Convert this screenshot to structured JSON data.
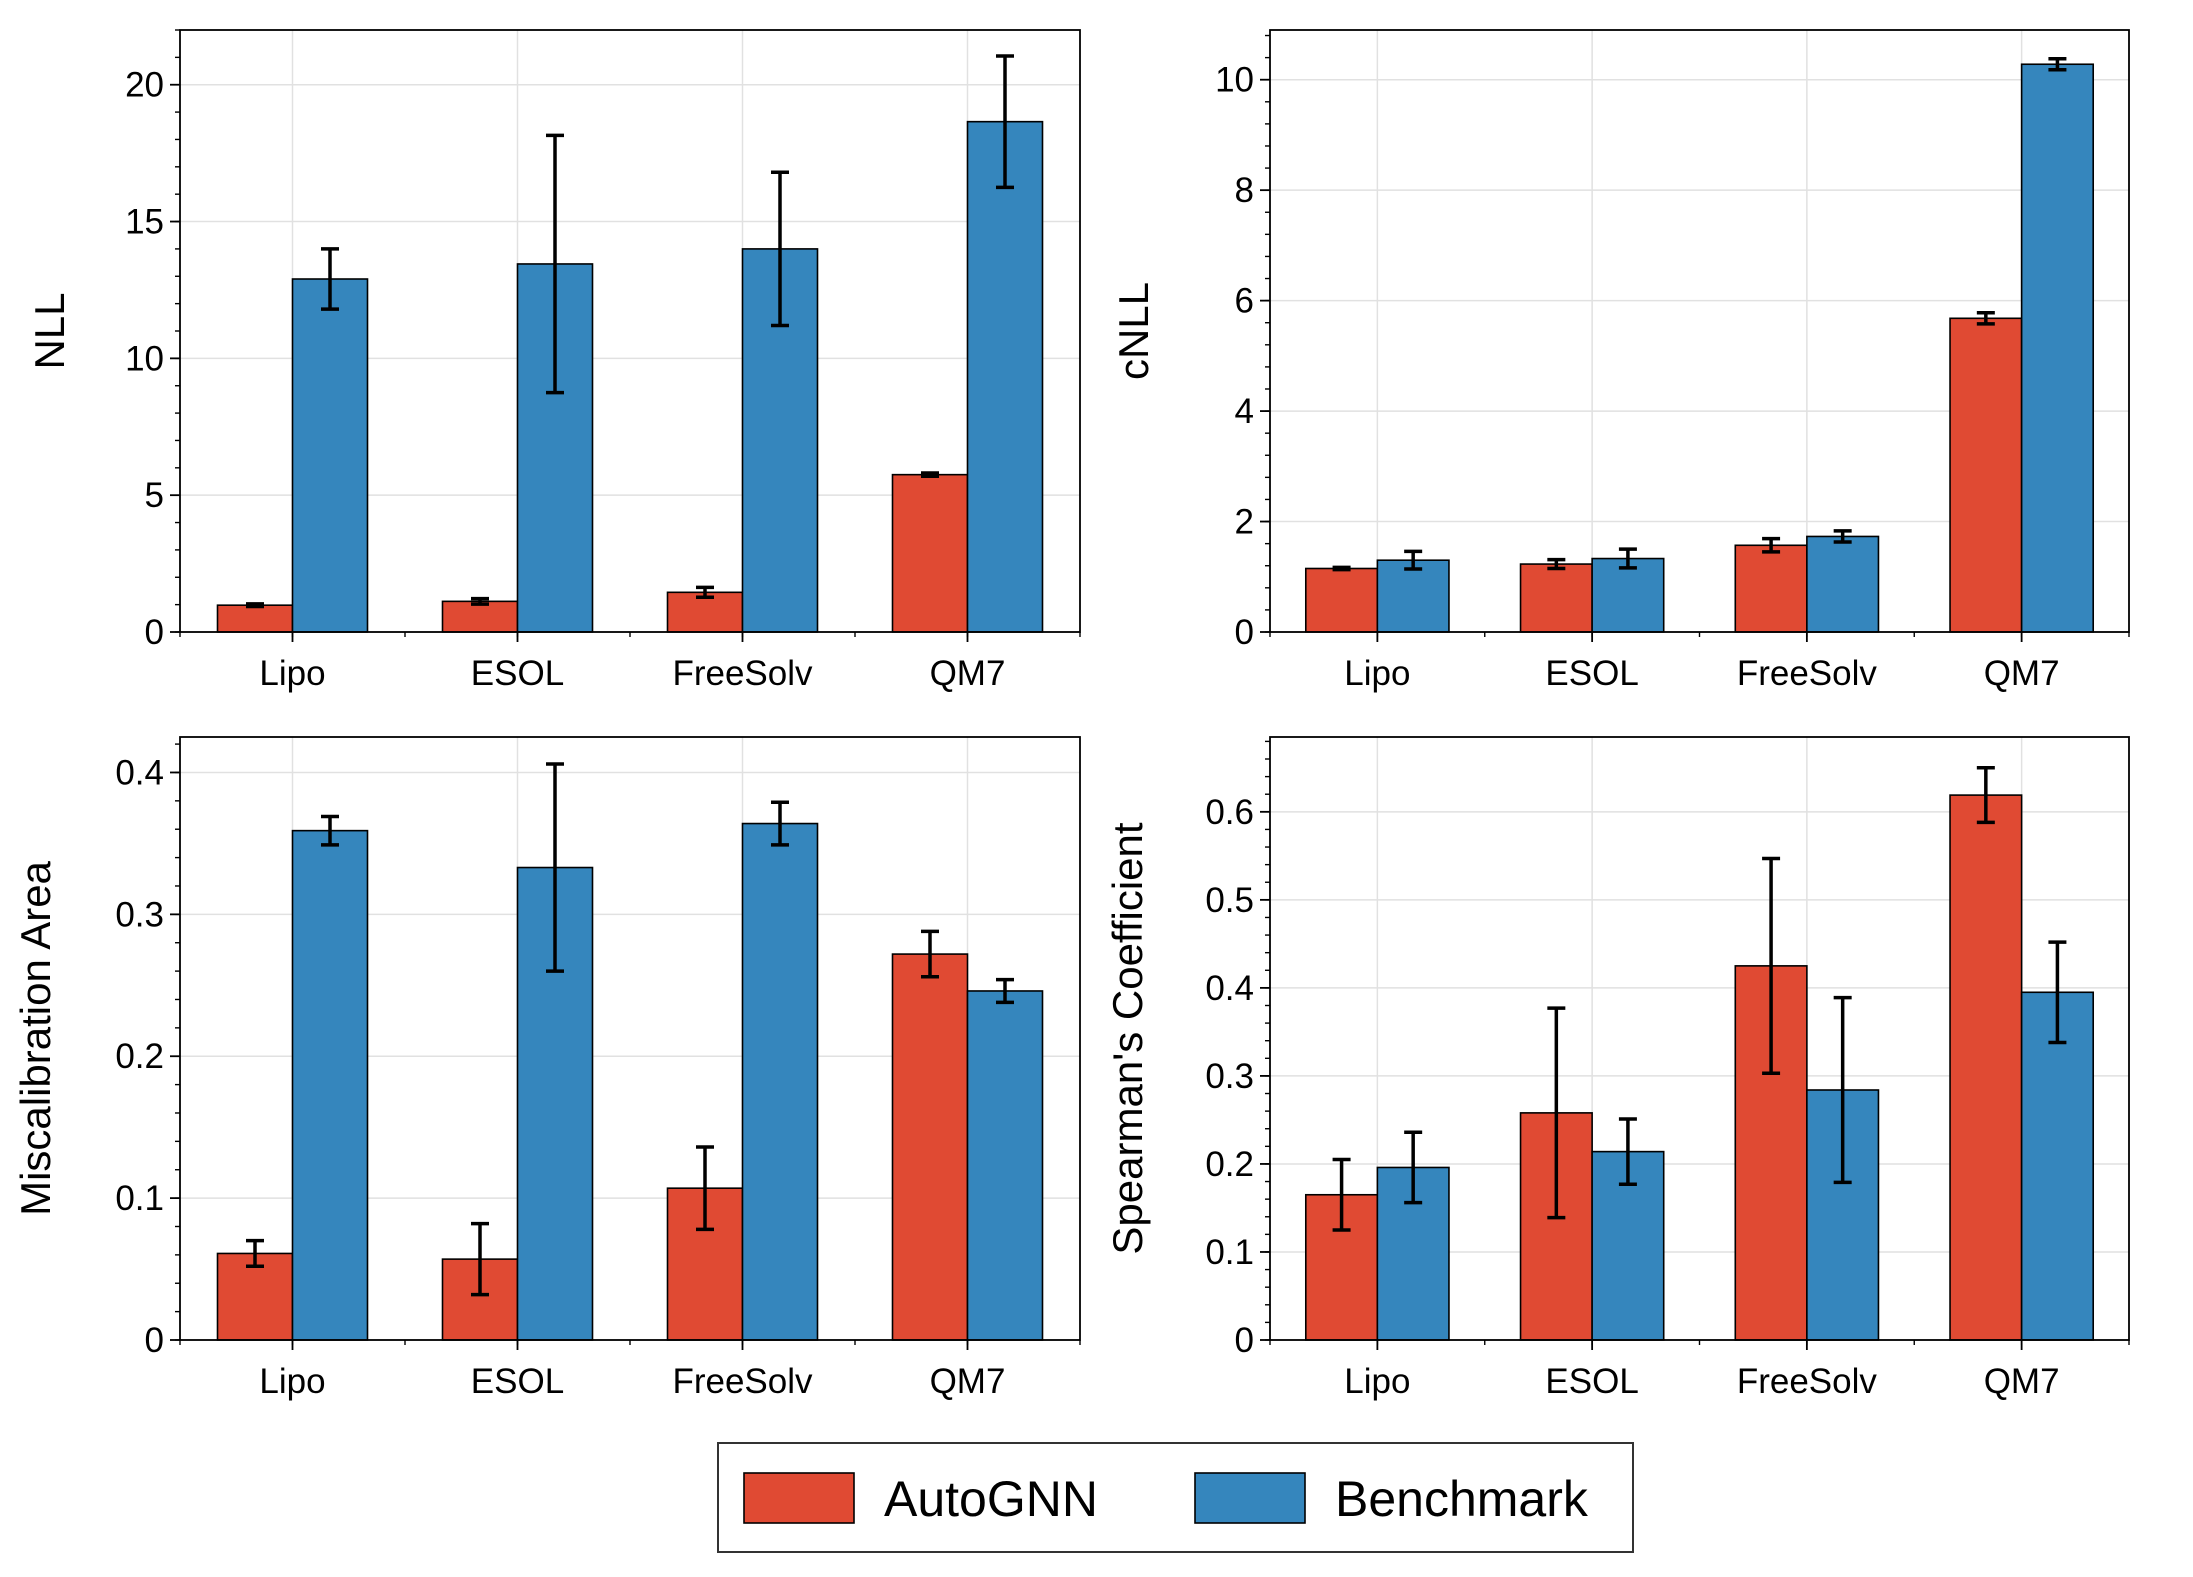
{
  "colors": {
    "AutoGNN": "#e04a33",
    "Benchmark": "#3586bd",
    "grid": "#e1e1e1",
    "error": "#000000"
  },
  "legend": {
    "placement": "bottom-center",
    "items": [
      {
        "label": "AutoGNN",
        "color": "#e04a33"
      },
      {
        "label": "Benchmark",
        "color": "#3586bd"
      }
    ]
  },
  "chart_data": [
    {
      "type": "bar",
      "ylabel": "NLL",
      "categories": [
        "Lipo",
        "ESOL",
        "FreeSolv",
        "QM7"
      ],
      "ylim": [
        0,
        22
      ],
      "yticks": [
        0,
        5,
        10,
        15,
        20
      ],
      "ytick_labels": [
        "0",
        "5",
        "10",
        "15",
        "20"
      ],
      "grid": true,
      "series": [
        {
          "name": "AutoGNN",
          "values": [
            0.98,
            1.12,
            1.45,
            5.75
          ],
          "errors": [
            0.05,
            0.1,
            0.18,
            0.06
          ]
        },
        {
          "name": "Benchmark",
          "values": [
            12.9,
            13.45,
            14.0,
            18.65
          ],
          "errors": [
            1.1,
            4.7,
            2.8,
            2.4
          ]
        }
      ]
    },
    {
      "type": "bar",
      "ylabel": "cNLL",
      "categories": [
        "Lipo",
        "ESOL",
        "FreeSolv",
        "QM7"
      ],
      "ylim": [
        0,
        10.9
      ],
      "yticks": [
        0,
        2,
        4,
        6,
        8,
        10
      ],
      "ytick_labels": [
        "0",
        "2",
        "4",
        "6",
        "8",
        "10"
      ],
      "grid": true,
      "series": [
        {
          "name": "AutoGNN",
          "values": [
            1.15,
            1.23,
            1.57,
            5.68
          ],
          "errors": [
            0.02,
            0.08,
            0.12,
            0.1
          ]
        },
        {
          "name": "Benchmark",
          "values": [
            1.3,
            1.33,
            1.73,
            10.28
          ],
          "errors": [
            0.16,
            0.17,
            0.1,
            0.1
          ]
        }
      ]
    },
    {
      "type": "bar",
      "ylabel": "Miscalibration Area",
      "categories": [
        "Lipo",
        "ESOL",
        "FreeSolv",
        "QM7"
      ],
      "ylim": [
        0,
        0.425
      ],
      "yticks": [
        0,
        0.1,
        0.2,
        0.3,
        0.4
      ],
      "ytick_labels": [
        "0",
        "0.1",
        "0.2",
        "0.3",
        "0.4"
      ],
      "grid": true,
      "series": [
        {
          "name": "AutoGNN",
          "values": [
            0.061,
            0.057,
            0.107,
            0.272
          ],
          "errors": [
            0.009,
            0.025,
            0.029,
            0.016
          ]
        },
        {
          "name": "Benchmark",
          "values": [
            0.359,
            0.333,
            0.364,
            0.246
          ],
          "errors": [
            0.01,
            0.073,
            0.015,
            0.008
          ]
        }
      ]
    },
    {
      "type": "bar",
      "ylabel": "Spearman's Coefficient",
      "categories": [
        "Lipo",
        "ESOL",
        "FreeSolv",
        "QM7"
      ],
      "ylim": [
        0,
        0.685
      ],
      "yticks": [
        0,
        0.1,
        0.2,
        0.3,
        0.4,
        0.5,
        0.6
      ],
      "ytick_labels": [
        "0",
        "0.1",
        "0.2",
        "0.3",
        "0.4",
        "0.5",
        "0.6"
      ],
      "grid": true,
      "series": [
        {
          "name": "AutoGNN",
          "values": [
            0.165,
            0.258,
            0.425,
            0.619
          ],
          "errors": [
            0.04,
            0.119,
            0.122,
            0.031
          ]
        },
        {
          "name": "Benchmark",
          "values": [
            0.196,
            0.214,
            0.284,
            0.395
          ],
          "errors": [
            0.04,
            0.037,
            0.105,
            0.057
          ]
        }
      ]
    }
  ]
}
